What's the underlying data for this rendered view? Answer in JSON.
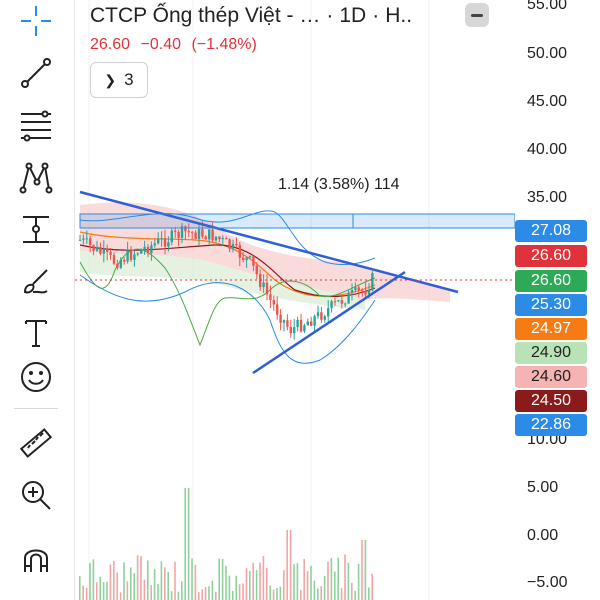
{
  "header": {
    "symbol": "CTCP Ống thép Việt - …",
    "interval": "1D",
    "exchange": "H.."
  },
  "quote": {
    "last": "26.60",
    "change": "−0.40",
    "change_pct": "(−1.48%)",
    "color": "#e0323a"
  },
  "indicators_toggle": {
    "count": "3"
  },
  "measure_tool": {
    "label": "1.14 (3.58%) 114"
  },
  "toolbar": {
    "tools": [
      "crosshair-icon",
      "trendline-icon",
      "fib-retracement-icon",
      "pattern-icon",
      "projection-icon",
      "brush-icon",
      "text-icon",
      "emoji-icon",
      "ruler-icon",
      "zoom-in-icon",
      "magnet-icon"
    ]
  },
  "price_axis": {
    "ticks": [
      "55.00",
      "50.00",
      "45.00",
      "40.00",
      "35.00",
      "10.00",
      "5.00",
      "0.00",
      "−5.00"
    ]
  },
  "price_tags": [
    {
      "text": "27.08",
      "color": "#2b8be6"
    },
    {
      "text": "26.60",
      "color": "#e0323a"
    },
    {
      "text": "26.60",
      "color": "#2eaa57"
    },
    {
      "text": "25.30",
      "color": "#2b8be6"
    },
    {
      "text": "24.97",
      "color": "#f57c14"
    },
    {
      "text": "24.90",
      "color": "#b9e3b7"
    },
    {
      "text": "24.60",
      "color": "#f5b3b3"
    },
    {
      "text": "24.50",
      "color": "#8b1a1a"
    },
    {
      "text": "22.86",
      "color": "#2b8be6"
    }
  ],
  "colors": {
    "up": "#26a69a",
    "down": "#ef5350",
    "trendline": "#2f5fd6",
    "bollinger": "#2b8be6",
    "cloud_green": "#cfe8c9",
    "cloud_red": "#f7cfcf"
  }
}
